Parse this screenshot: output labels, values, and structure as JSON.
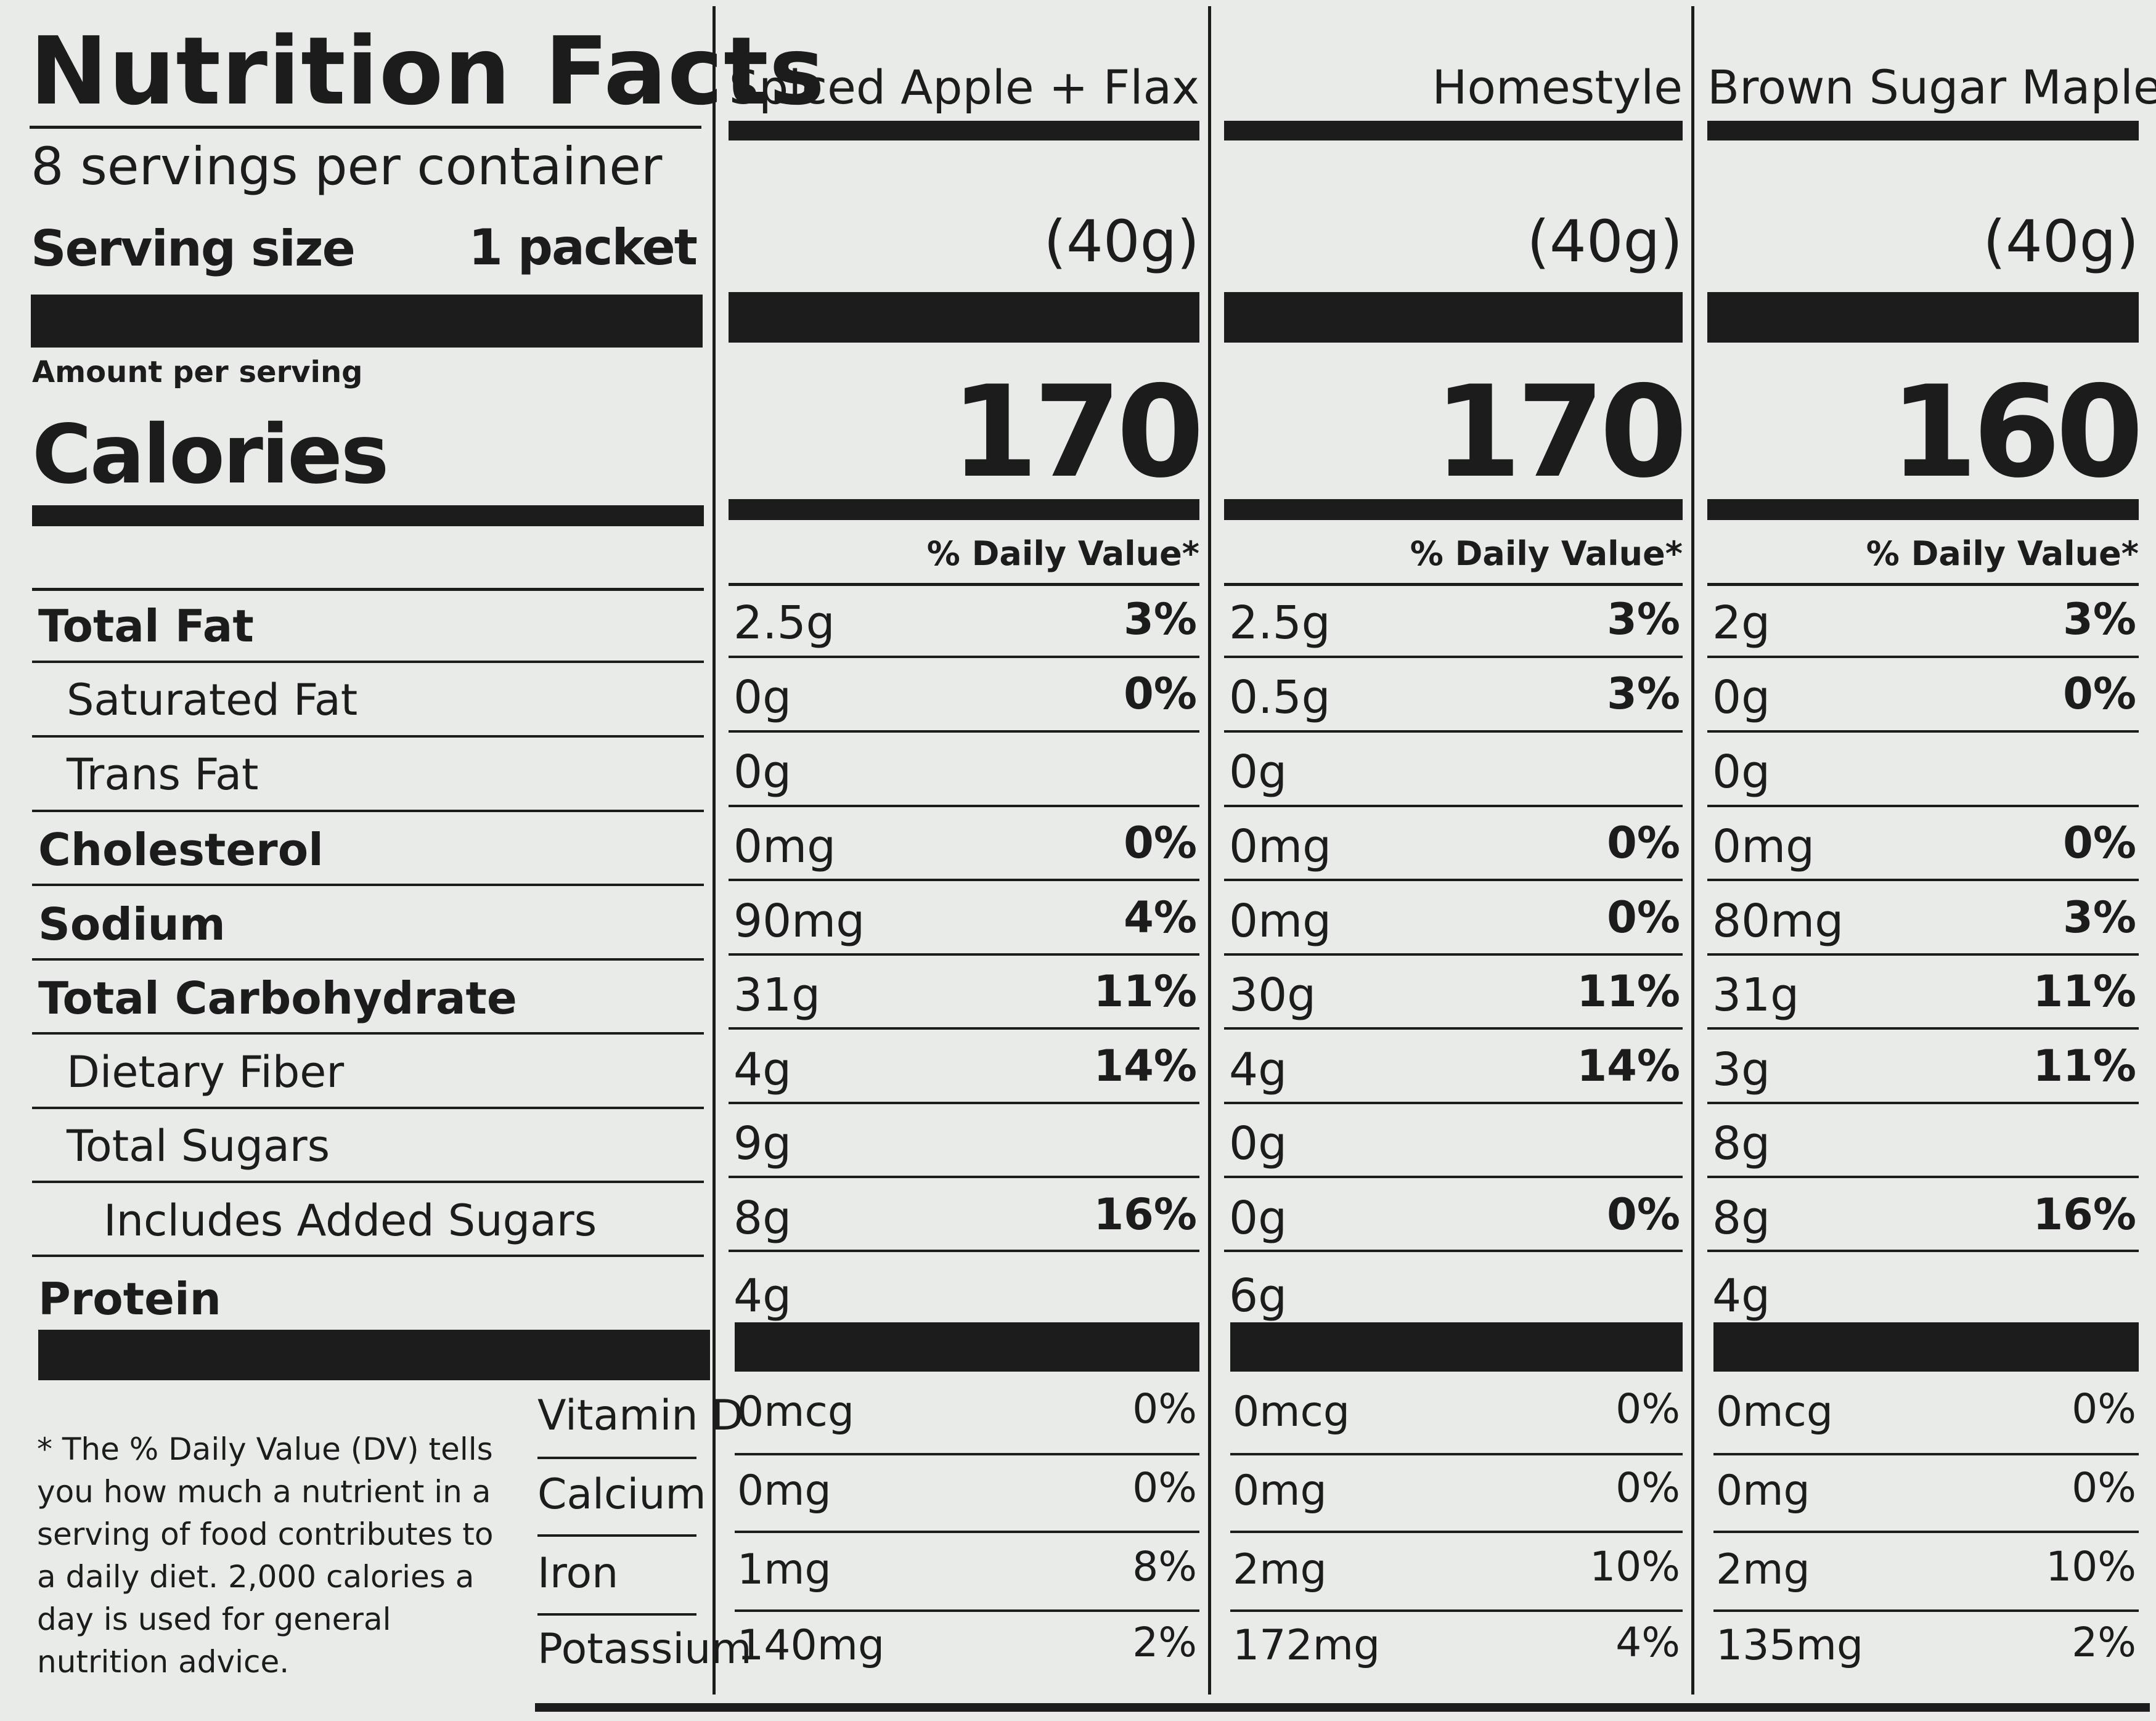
{
  "label": {
    "title": "Nutrition Facts",
    "servings_per_container": "8 servings per container",
    "serving_size_label": "Serving size",
    "serving_size_value": "1 packet",
    "amount_per_serving": "Amount per serving",
    "calories_label": "Calories",
    "daily_value_header": "% Daily Value*",
    "nutrients": [
      {
        "label": "Total Fat",
        "bold": true
      },
      {
        "label": "Saturated Fat",
        "bold": false
      },
      {
        "label": "Trans Fat",
        "bold": false
      },
      {
        "label": "Cholesterol",
        "bold": true
      },
      {
        "label": "Sodium",
        "bold": true
      },
      {
        "label": "Total Carbohydrate",
        "bold": true
      },
      {
        "label": "Dietary Fiber",
        "bold": false
      },
      {
        "label": "Total Sugars",
        "bold": false
      },
      {
        "label": "Includes Added Sugars",
        "bold": false
      },
      {
        "label": "Protein",
        "bold": true
      }
    ],
    "vitamins": [
      "Vitamin D",
      "Calcium",
      "Iron",
      "Potassium"
    ],
    "footnote": "* The % Daily Value (DV) tells you how much a nutrient in a serving of food contributes to a daily diet. 2,000 calories a day is used for general nutrition advice."
  },
  "products": [
    {
      "name": "Spiced Apple + Flax",
      "serving_size": "(40g)",
      "calories": "170",
      "nutrients": [
        {
          "amount": "2.5g",
          "dv": "3%"
        },
        {
          "amount": "0g",
          "dv": "0%"
        },
        {
          "amount": "0g",
          "dv": ""
        },
        {
          "amount": "0mg",
          "dv": "0%"
        },
        {
          "amount": "90mg",
          "dv": "4%"
        },
        {
          "amount": "31g",
          "dv": "11%"
        },
        {
          "amount": "4g",
          "dv": "14%"
        },
        {
          "amount": "9g",
          "dv": ""
        },
        {
          "amount": "8g",
          "dv": "16%"
        },
        {
          "amount": "4g",
          "dv": ""
        }
      ],
      "vitamins": [
        {
          "amount": "0mcg",
          "dv": "0%"
        },
        {
          "amount": "0mg",
          "dv": "0%"
        },
        {
          "amount": "1mg",
          "dv": "8%"
        },
        {
          "amount": "140mg",
          "dv": "2%"
        }
      ]
    },
    {
      "name": "Homestyle",
      "serving_size": "(40g)",
      "calories": "170",
      "nutrients": [
        {
          "amount": "2.5g",
          "dv": "3%"
        },
        {
          "amount": "0.5g",
          "dv": "3%"
        },
        {
          "amount": "0g",
          "dv": ""
        },
        {
          "amount": "0mg",
          "dv": "0%"
        },
        {
          "amount": "0mg",
          "dv": "0%"
        },
        {
          "amount": "30g",
          "dv": "11%"
        },
        {
          "amount": "4g",
          "dv": "14%"
        },
        {
          "amount": "0g",
          "dv": ""
        },
        {
          "amount": "0g",
          "dv": "0%"
        },
        {
          "amount": "6g",
          "dv": ""
        }
      ],
      "vitamins": [
        {
          "amount": "0mcg",
          "dv": "0%"
        },
        {
          "amount": "0mg",
          "dv": "0%"
        },
        {
          "amount": "2mg",
          "dv": "10%"
        },
        {
          "amount": "172mg",
          "dv": "4%"
        }
      ]
    },
    {
      "name": "Brown Sugar Maple",
      "serving_size": "(40g)",
      "calories": "160",
      "nutrients": [
        {
          "amount": "2g",
          "dv": "3%"
        },
        {
          "amount": "0g",
          "dv": "0%"
        },
        {
          "amount": "0g",
          "dv": ""
        },
        {
          "amount": "0mg",
          "dv": "0%"
        },
        {
          "amount": "80mg",
          "dv": "3%"
        },
        {
          "amount": "31g",
          "dv": "11%"
        },
        {
          "amount": "3g",
          "dv": "11%"
        },
        {
          "amount": "8g",
          "dv": ""
        },
        {
          "amount": "8g",
          "dv": "16%"
        },
        {
          "amount": "4g",
          "dv": ""
        }
      ],
      "vitamins": [
        {
          "amount": "0mcg",
          "dv": "0%"
        },
        {
          "amount": "0mg",
          "dv": "0%"
        },
        {
          "amount": "2mg",
          "dv": "10%"
        },
        {
          "amount": "135mg",
          "dv": "2%"
        }
      ]
    }
  ]
}
